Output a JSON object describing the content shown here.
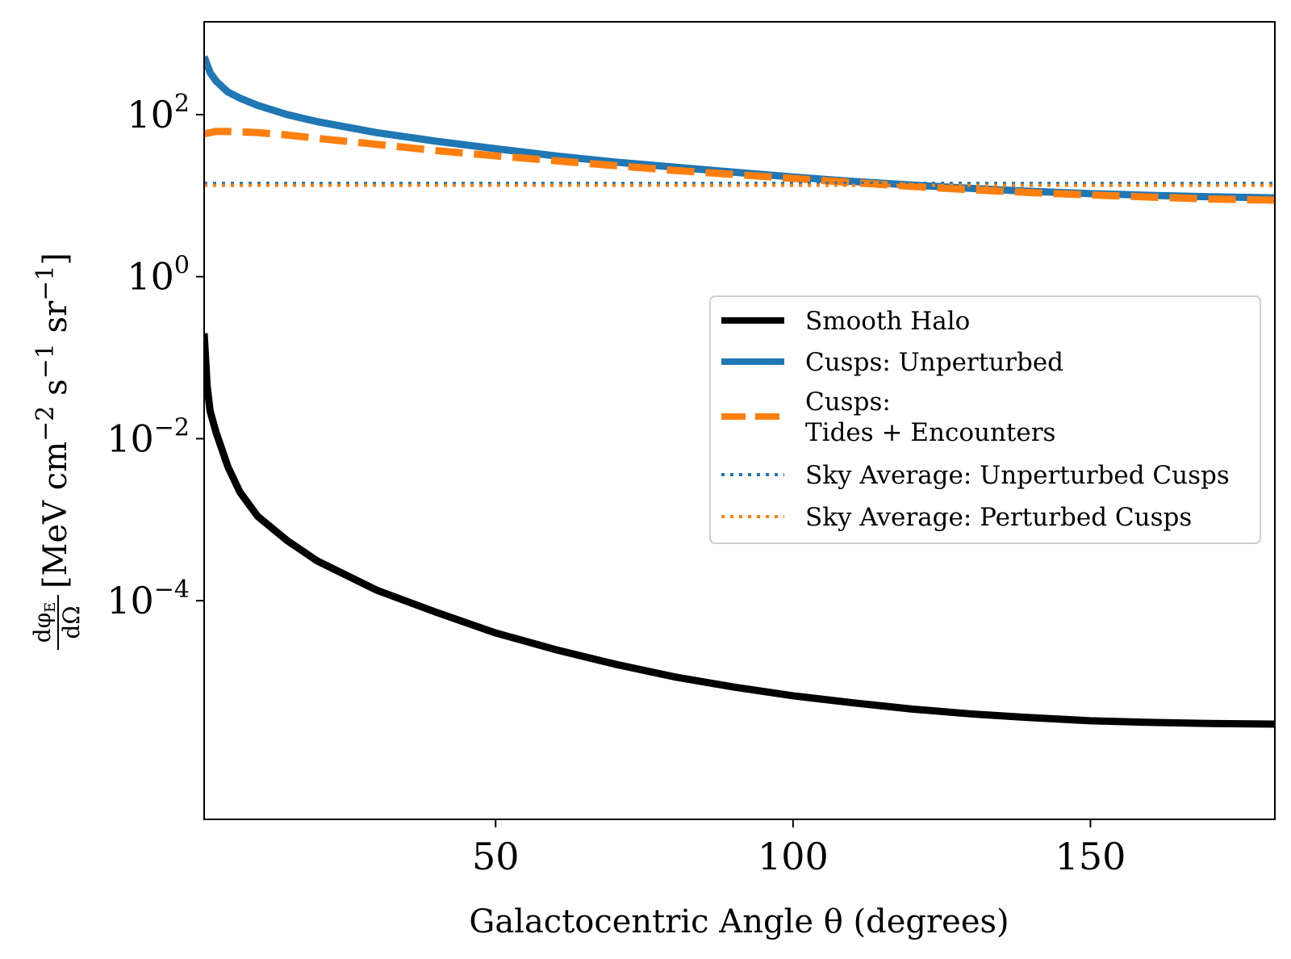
{
  "chart_data": {
    "type": "line",
    "xlabel": "Galactocentric Angle θ (degrees)",
    "ylabel": "dφE/dΩ [MeV cm⁻² s⁻¹ sr⁻¹]",
    "ylabel_parts": {
      "frac_num": "dφ",
      "frac_num_sub": "E",
      "frac_den": "dΩ",
      "units_open": "[MeV cm",
      "exp1": "−2",
      "s": " s",
      "exp2": "−1",
      "sr": " sr",
      "exp3": "−1",
      "units_close": "]"
    },
    "xlim": [
      1,
      181
    ],
    "ylim": [
      2e-07,
      1400
    ],
    "yscale": "log",
    "x_ticks": [
      {
        "value": 50,
        "label": "50"
      },
      {
        "value": 100,
        "label": "100"
      },
      {
        "value": 150,
        "label": "150"
      }
    ],
    "y_ticks": [
      {
        "value": 100,
        "base": "10",
        "exp": "2"
      },
      {
        "value": 1,
        "base": "10",
        "exp": "0"
      },
      {
        "value": 0.01,
        "base": "10",
        "exp": "−2"
      },
      {
        "value": 0.0001,
        "base": "10",
        "exp": "−4"
      }
    ],
    "grid": false,
    "legend_position": "center-right",
    "series": [
      {
        "name": "Smooth Halo",
        "color": "#000000",
        "style": "solid",
        "x": [
          1,
          1.5,
          2,
          3,
          5,
          7,
          10,
          15,
          20,
          30,
          40,
          50,
          60,
          70,
          80,
          90,
          100,
          110,
          120,
          130,
          140,
          150,
          160,
          170,
          181
        ],
        "y": [
          0.2,
          0.045,
          0.022,
          0.012,
          0.0045,
          0.0022,
          0.0011,
          0.00055,
          0.00031,
          0.000135,
          7.2e-05,
          4e-05,
          2.5e-05,
          1.65e-05,
          1.15e-05,
          8.6e-06,
          6.7e-06,
          5.5e-06,
          4.6e-06,
          4e-06,
          3.6e-06,
          3.3e-06,
          3.15e-06,
          3.05e-06,
          3e-06
        ]
      },
      {
        "name": "Cusps: Unperturbed",
        "color": "#1f77b4",
        "style": "solid",
        "x": [
          1,
          2,
          3,
          5,
          7,
          10,
          15,
          20,
          30,
          40,
          50,
          60,
          70,
          80,
          90,
          100,
          110,
          120,
          130,
          140,
          150,
          160,
          170,
          181
        ],
        "y": [
          520,
          330,
          260,
          190,
          160,
          130,
          100,
          82,
          60,
          47,
          38,
          31,
          26,
          22.5,
          19.5,
          17,
          15,
          13.5,
          12.3,
          11.3,
          10.6,
          10.1,
          9.7,
          9.4
        ]
      },
      {
        "name": "Cusps:\nTides + Encounters",
        "label_lines": [
          "Cusps:",
          "Tides + Encounters"
        ],
        "color": "#ff7f0e",
        "style": "dashed",
        "x": [
          1,
          3,
          5,
          10,
          15,
          20,
          30,
          40,
          50,
          60,
          70,
          80,
          90,
          100,
          110,
          120,
          130,
          140,
          150,
          160,
          170,
          181
        ],
        "y": [
          58,
          62,
          62,
          60,
          56,
          51,
          43,
          36,
          31,
          27,
          23.5,
          20.5,
          18.3,
          16.3,
          14.5,
          13,
          11.8,
          10.9,
          10.2,
          9.6,
          9.1,
          8.8
        ]
      },
      {
        "name": "Sky Average: Unperturbed Cusps",
        "color": "#1f77b4",
        "style": "dotted",
        "x": [
          1,
          181
        ],
        "y": [
          14.2,
          14.2
        ]
      },
      {
        "name": "Sky Average: Perturbed Cusps",
        "color": "#ff7f0e",
        "style": "dotted",
        "x": [
          1,
          181
        ],
        "y": [
          13.4,
          13.4
        ]
      }
    ]
  }
}
